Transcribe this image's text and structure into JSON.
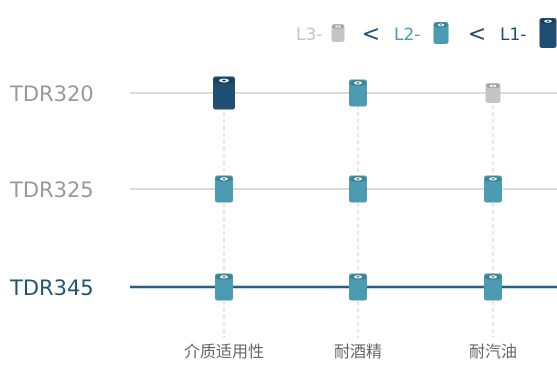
{
  "chart_data": {
    "type": "table",
    "legend": {
      "placement": "top-right",
      "items": [
        {
          "label": "L3-",
          "level": "L3"
        },
        {
          "label": "L2-",
          "level": "L2"
        },
        {
          "label": "L1-",
          "level": "L1"
        }
      ],
      "separator": "<"
    },
    "rows": [
      {
        "name": "TDR320",
        "levels": [
          "L1",
          "L2",
          "L3"
        ],
        "emphasized": false
      },
      {
        "name": "TDR325",
        "levels": [
          "L2",
          "L2",
          "L2"
        ],
        "emphasized": false
      },
      {
        "name": "TDR345",
        "levels": [
          "L2",
          "L2",
          "L2"
        ],
        "emphasized": true
      }
    ],
    "columns": [
      "介质适用性",
      "耐酒精",
      "耐汽油"
    ],
    "level_colors": {
      "L1": "#1f4e73",
      "L2": "#4b9bb3",
      "L3": "#c4c4c6"
    },
    "line_colors": {
      "normal": "#c5c5c5",
      "emphasized": "#2b5d80"
    },
    "text_colors": {
      "row_label": "#999999",
      "row_label_emphasized": "#1f5578",
      "column_label": "#666666"
    }
  }
}
